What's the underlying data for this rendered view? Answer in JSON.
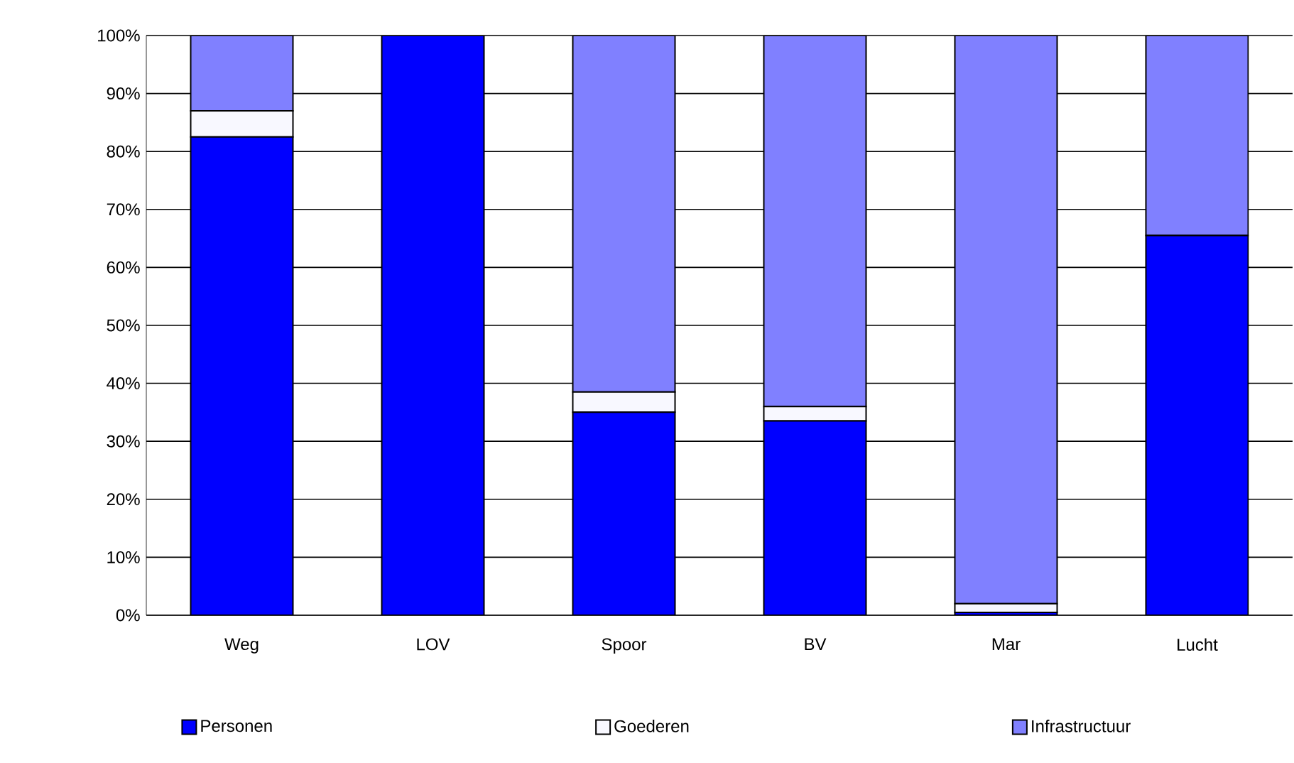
{
  "chart_data": {
    "type": "bar",
    "stacked": true,
    "categories": [
      "Weg",
      "LOV",
      "Spoor",
      "BV",
      "Mar",
      "Lucht"
    ],
    "series": [
      {
        "name": "Personen",
        "color": "#0000ff",
        "values": [
          82.5,
          100,
          35,
          33.5,
          0.5,
          65.5
        ]
      },
      {
        "name": "Goederen",
        "color": "#f8f8ff",
        "values": [
          4.5,
          0,
          3.5,
          2.5,
          1.5,
          0
        ]
      },
      {
        "name": "Infrastructuur",
        "color": "#8080ff",
        "values": [
          13,
          0,
          61.5,
          64,
          98,
          34.5
        ]
      }
    ],
    "ylim": [
      0,
      100
    ],
    "yticks": [
      {
        "value": 0,
        "label": "0%"
      },
      {
        "value": 10,
        "label": "10%"
      },
      {
        "value": 20,
        "label": "20%"
      },
      {
        "value": 30,
        "label": "30%"
      },
      {
        "value": 40,
        "label": "40%"
      },
      {
        "value": 50,
        "label": "50%"
      },
      {
        "value": 60,
        "label": "60%"
      },
      {
        "value": 70,
        "label": "70%"
      },
      {
        "value": 80,
        "label": "80%"
      },
      {
        "value": 90,
        "label": "90%"
      },
      {
        "value": 100,
        "label": "100%"
      }
    ],
    "grid": "y",
    "legend": "bottom"
  }
}
